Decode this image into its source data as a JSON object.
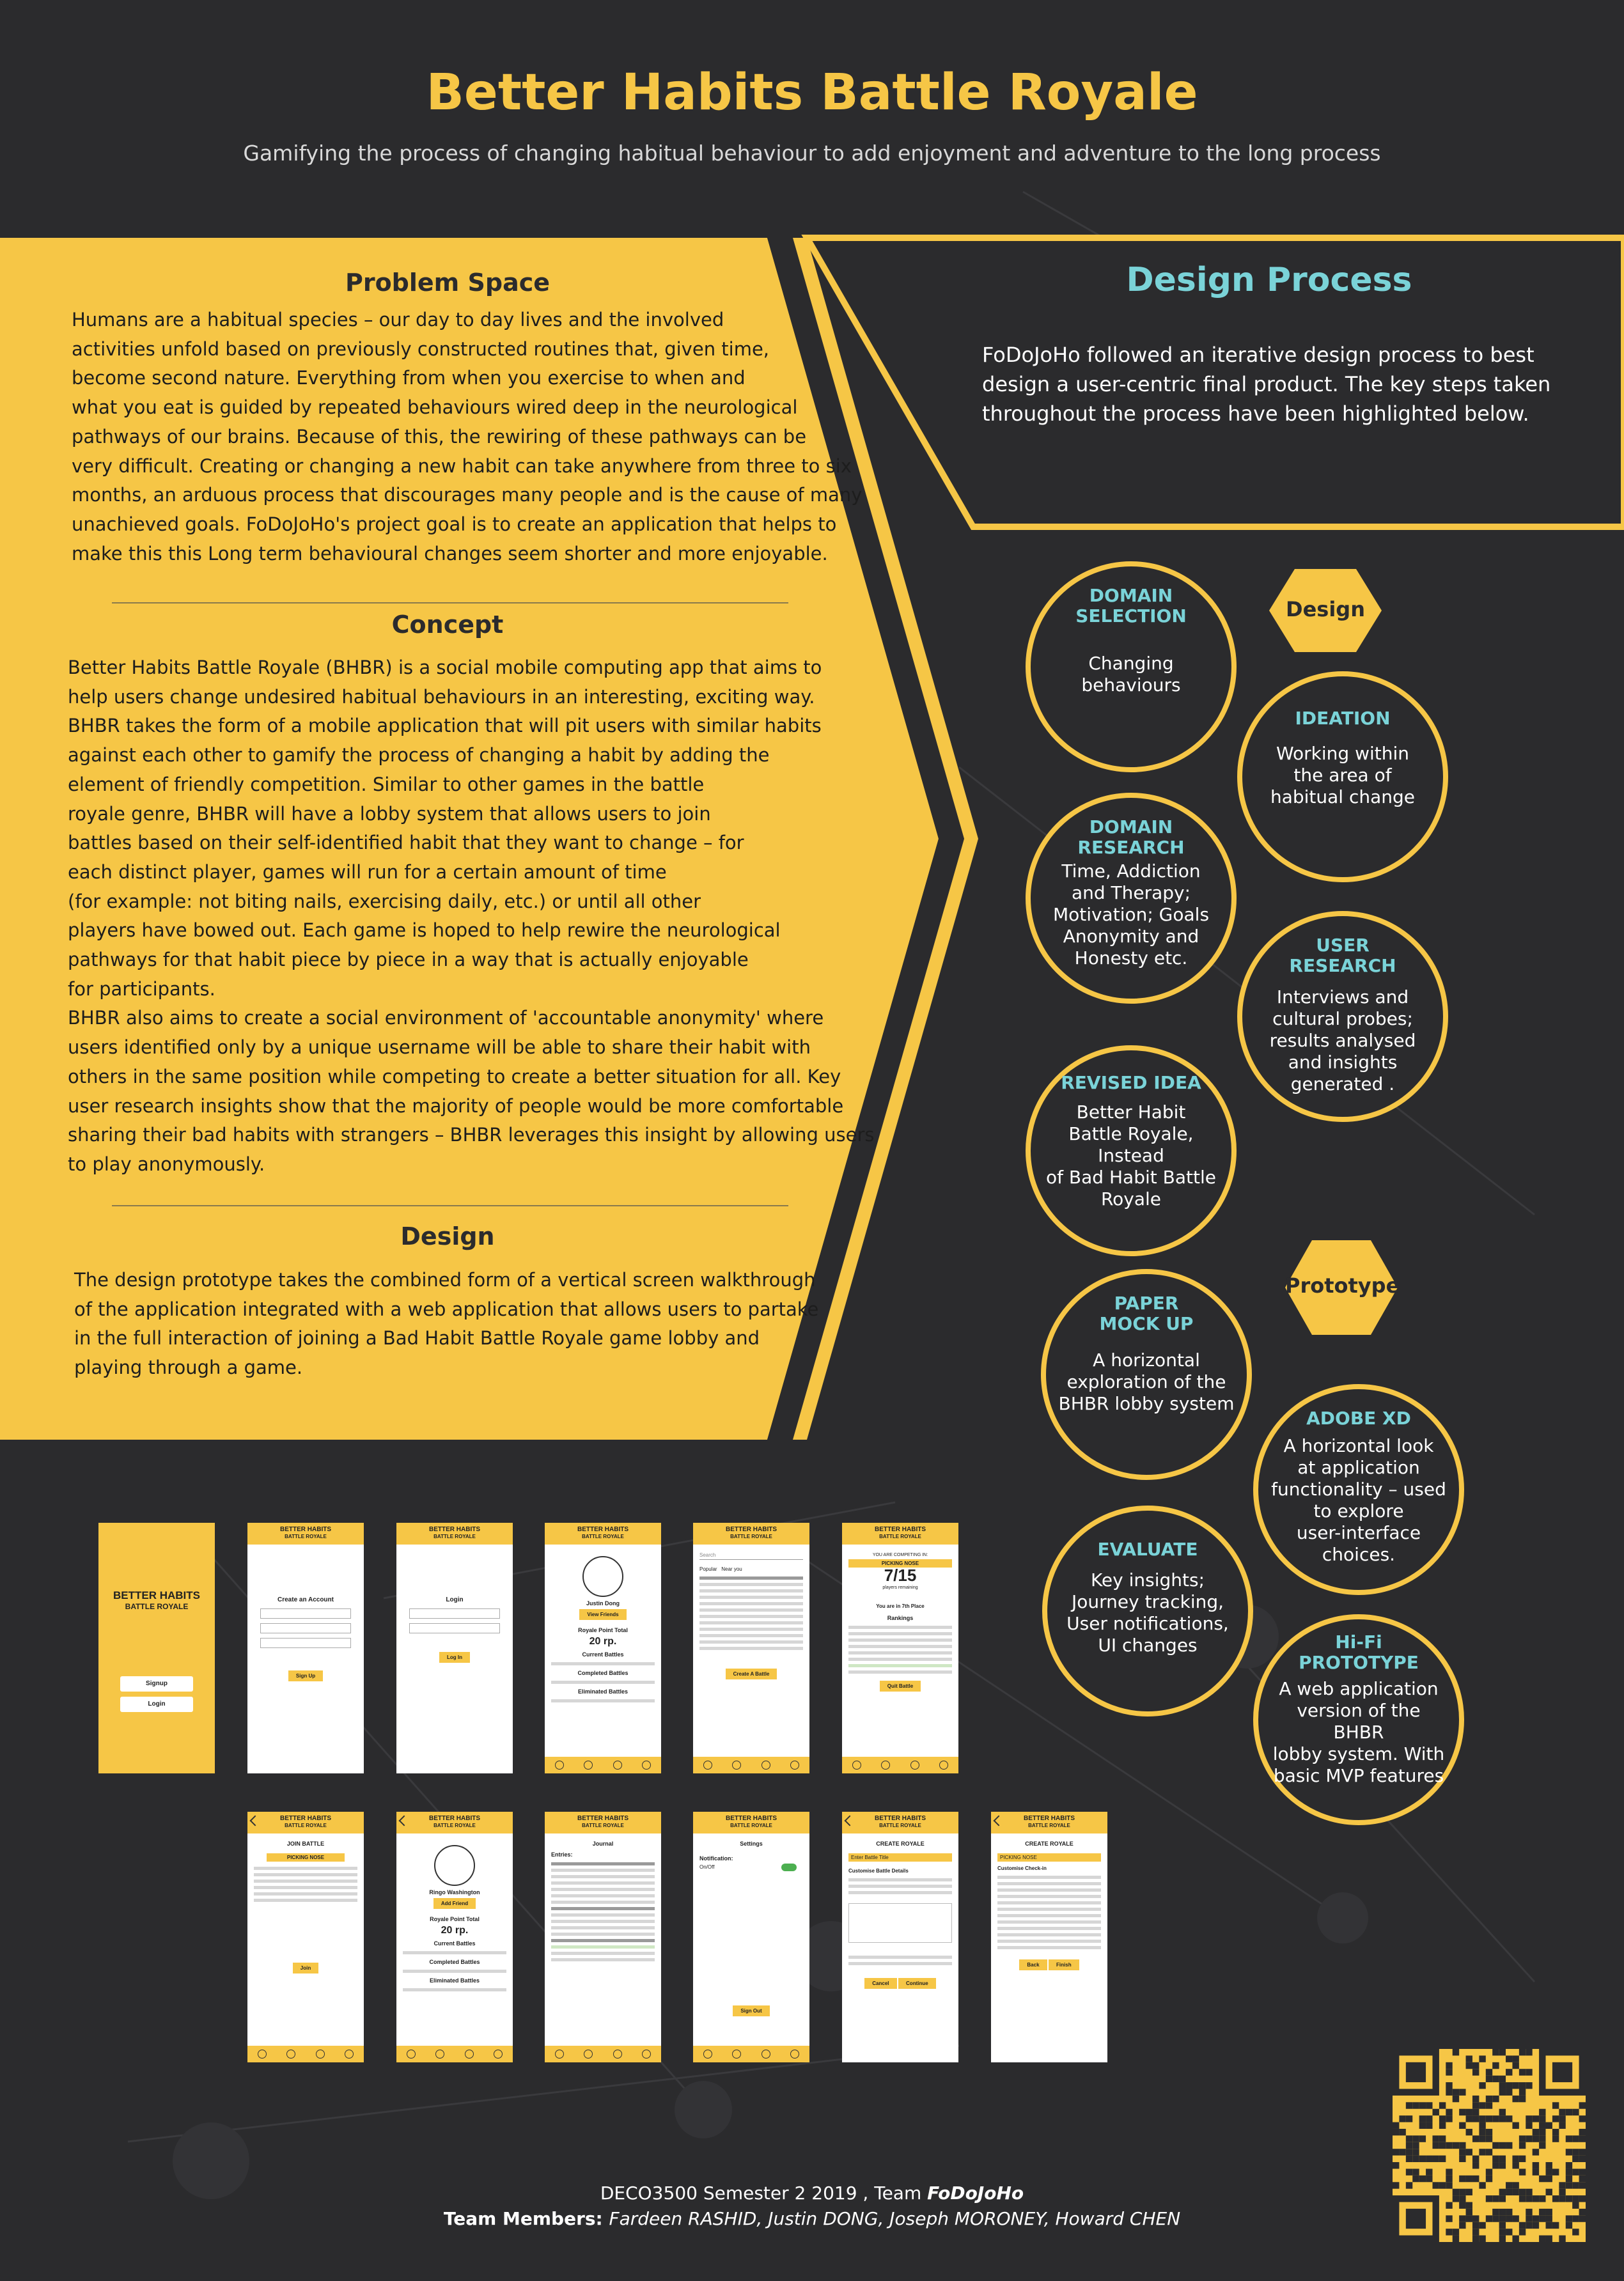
{
  "header": {
    "title": "Better Habits Battle Royale",
    "subtitle": "Gamifying the process of changing habitual behaviour to add enjoyment and adventure to the long process"
  },
  "problem_space": {
    "heading": "Problem Space",
    "lines": [
      "Humans are a habitual species – our day to day lives and the involved",
      "activities unfold based on previously constructed routines that, given time,",
      "become second nature. Everything from when you exercise to when and",
      "what you eat is guided by repeated behaviours wired deep in the neurological",
      "pathways of our brains. Because of this, the rewiring of these pathways can be",
      "very difficult. Creating or changing a new habit can take anywhere from three to six",
      "months, an arduous process that discourages many people and is the cause of many",
      "unachieved goals. FoDoJoHo's project goal is to create an application that helps to",
      "make this this Long term behavioural changes seem shorter and more enjoyable."
    ]
  },
  "concept": {
    "heading": "Concept",
    "lines": [
      "Better Habits Battle Royale (BHBR) is a social mobile computing app that aims to",
      "help users change undesired habitual behaviours in an interesting, exciting way.",
      "BHBR takes the form of a mobile application that will pit users with similar habits",
      "against each other to gamify the process of changing a habit by adding the",
      "element of friendly competition. Similar to other games in the battle",
      "royale genre, BHBR will have a lobby system that allows users to join",
      "battles based on their self-identified habit that they want to change – for",
      "each distinct player, games will run for a certain amount of time",
      "(for example: not biting nails, exercising daily, etc.) or until all other",
      "players have bowed out. Each game is hoped to help rewire the neurological",
      "pathways for that habit piece by piece in a way that is actually enjoyable",
      "for participants.",
      "BHBR also aims to create a social environment of 'accountable anonymity' where",
      "users identified only by a unique username will be able to share their habit with",
      "others in the same position while competing to create a better situation for all. Key",
      "user research insights show that the majority of people would be more comfortable",
      "sharing their bad habits with strangers – BHBR leverages this insight by allowing users",
      "to play anonymously."
    ]
  },
  "design": {
    "heading": "Design",
    "lines": [
      "The design prototype takes the combined form of a vertical screen walkthrough",
      "of the application integrated with a web application that allows users to partake",
      "in the full interaction of joining a Bad Habit Battle Royale game lobby and",
      "playing through a game."
    ]
  },
  "design_process": {
    "heading": "Design Process",
    "lines": [
      "FoDoJoHo followed an iterative design process to best",
      "design a user-centric final product. The key steps taken",
      "throughout the process have been highlighted below."
    ],
    "phase_design": "Design",
    "phase_prototype": "Prototype",
    "steps": [
      {
        "title": [
          "DOMAIN",
          "SELECTION"
        ],
        "body": [
          "Changing behaviours"
        ]
      },
      {
        "title": [
          "IDEATION"
        ],
        "body": [
          "Working within",
          "the area of",
          "habitual change"
        ]
      },
      {
        "title": [
          "DOMAIN",
          "RESEARCH"
        ],
        "body": [
          "Time, Addiction",
          "and Therapy;",
          "Motivation; Goals",
          "Anonymity and",
          "Honesty etc."
        ]
      },
      {
        "title": [
          "USER",
          "RESEARCH"
        ],
        "body": [
          "Interviews and",
          "cultural probes;",
          "results analysed",
          "and insights",
          "generated ."
        ]
      },
      {
        "title": [
          "REVISED IDEA"
        ],
        "body": [
          "Better Habit",
          "Battle Royale, Instead",
          "of Bad Habit Battle",
          "Royale"
        ]
      },
      {
        "title": [
          "PAPER",
          "MOCK UP"
        ],
        "body": [
          "A horizontal",
          "exploration of the",
          "BHBR lobby system"
        ]
      },
      {
        "title": [
          "ADOBE XD"
        ],
        "body": [
          "A horizontal look",
          "at application",
          "functionality – used",
          "to explore",
          "user-interface",
          "choices."
        ]
      },
      {
        "title": [
          "EVALUATE"
        ],
        "body": [
          "Key insights;",
          "Journey tracking,",
          "User notifications,",
          "UI changes"
        ]
      },
      {
        "title": [
          "Hi-Fi",
          "PROTOTYPE"
        ],
        "body": [
          "A web application",
          "version of the BHBR",
          "lobby system. With",
          "basic MVP features"
        ]
      }
    ]
  },
  "screens": {
    "app_name_1": "BETTER HABITS",
    "app_name_2": "BATTLE ROYALE",
    "signup": "Signup",
    "login": "Login",
    "create_account": "Create an Account",
    "username": "Username",
    "password": "Password",
    "reenter_password": "Re-enter password",
    "sign_up_btn": "Sign Up",
    "log_in_btn": "Log In",
    "profile_name_1": "Justin Dong",
    "view_friends": "View Friends",
    "royale_points": "Royale Point Total",
    "points_1": "20 rp.",
    "current_battles": "Current Battles",
    "completed_battles": "Completed Battles",
    "eliminated_battles": "Eliminated Battles",
    "search": "Search",
    "popular": "Popular",
    "near_you": "Near you",
    "create_battle": "Create A Battle",
    "competing_in": "YOU ARE COMPETING IN:",
    "picking_nose": "PICKING NOSE",
    "players_count": "7/15",
    "players_remaining": "players remaining",
    "you_are_in": "You are in 7th Place",
    "rankings": "Rankings",
    "quit_battle": "Quit Battle",
    "join_battle": "JOIN BATTLE",
    "join": "Join",
    "profile_name_2": "Ringo Washington",
    "add_friend": "Add Friend",
    "journal": "Journal",
    "entries": "Entries:",
    "settings": "Settings",
    "notification": "Notification:",
    "on_off": "On/Off",
    "sign_out": "Sign Out",
    "create_royale": "CREATE ROYALE",
    "enter_battle_title": "Enter Battle Title",
    "customise_details": "Customise Battle Details",
    "cancel": "Cancel",
    "continue": "Continue",
    "customise_checkin": "Customise Check-in",
    "back": "Back",
    "finish": "Finish",
    "nav": [
      "BATTLE",
      "PROFILE",
      "JOURNAL",
      "SETTINGS"
    ]
  },
  "footer": {
    "course": "DECO3500  Semester 2 2019 , Team ",
    "team": "FoDoJoHo",
    "members_label": "Team Members: ",
    "members": "Fardeen RASHID, Justin DONG, Joseph MORONEY, Howard CHEN"
  },
  "colors": {
    "background": "#2b2b2d",
    "accent_yellow": "#f6c646",
    "accent_teal": "#7ad3d8"
  }
}
